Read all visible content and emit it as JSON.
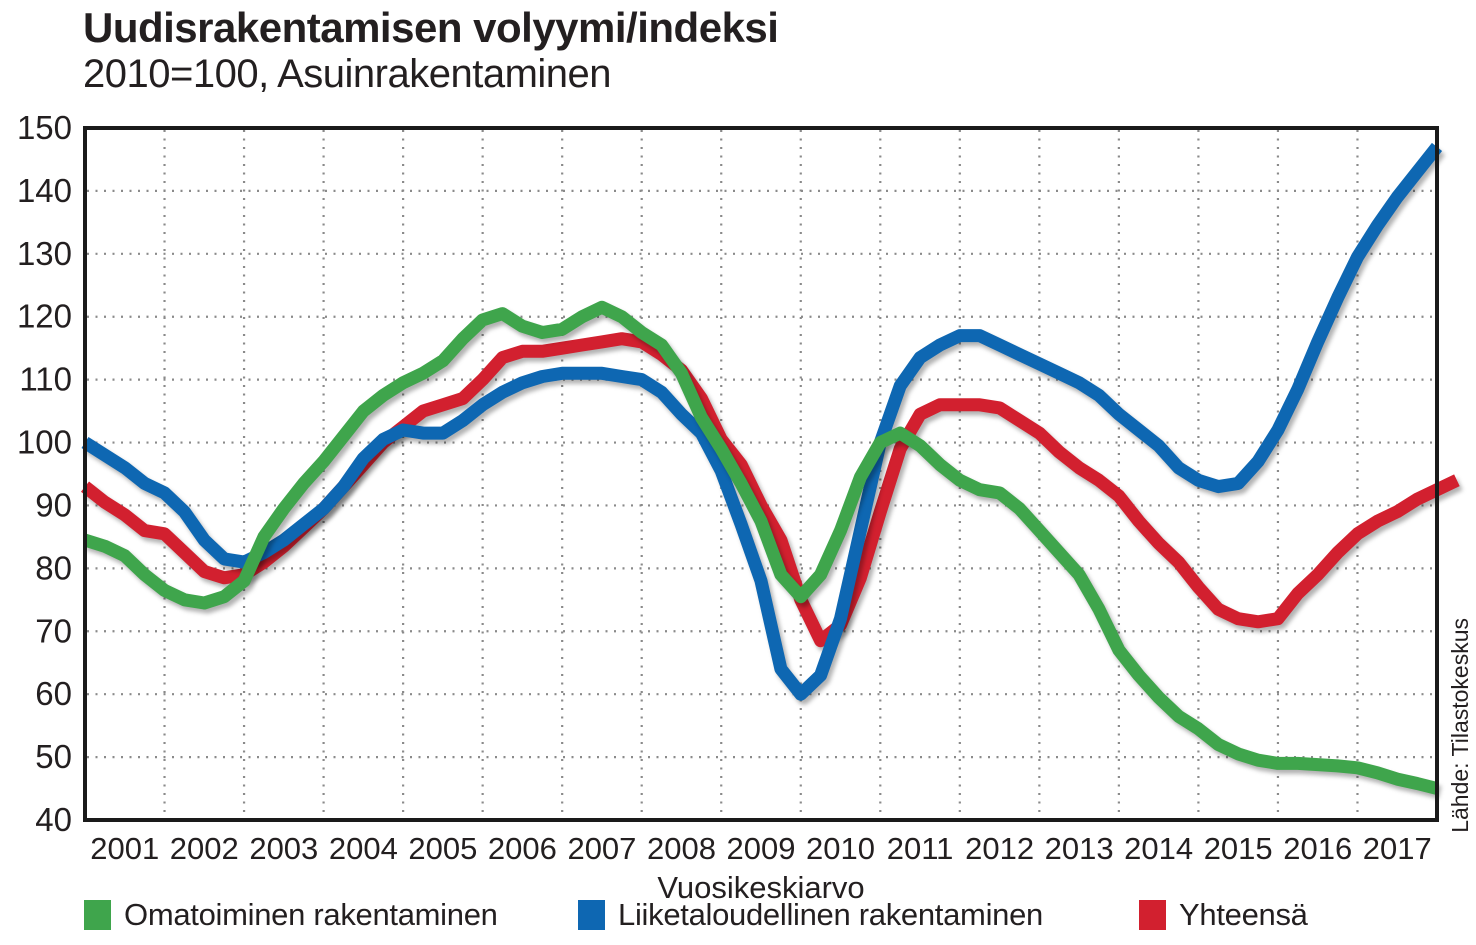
{
  "header": {
    "title": "Uudisrakentamisen volyymi/indeksi",
    "subtitle": "2010=100, Asuinrakentaminen"
  },
  "source": "Lähde: Tilastokeskus",
  "chart_data": {
    "type": "line",
    "title": "Uudisrakentamisen volyymi/indeksi",
    "subtitle": "2010=100, Asuinrakentaminen",
    "xlabel": "Vuosikeskiarvo",
    "ylabel": "",
    "categories": [
      "2001",
      "2002",
      "2003",
      "2004",
      "2005",
      "2006",
      "2007",
      "2008",
      "2009",
      "2010",
      "2011",
      "2012",
      "2013",
      "2014",
      "2015",
      "2016",
      "2017"
    ],
    "yticks": [
      40,
      50,
      60,
      70,
      80,
      90,
      100,
      110,
      120,
      130,
      140,
      150
    ],
    "ylim": [
      40,
      150
    ],
    "xlim": [
      2001.0,
      2018.0
    ],
    "x_start": 2001.0,
    "x_step": 0.25,
    "grid": "dotted",
    "legend_position": "bottom",
    "series": [
      {
        "id": "omatoiminen",
        "name": "Omatoiminen rakentaminen",
        "color": "#3fa54c",
        "values": [
          84.5,
          83.5,
          82,
          79,
          76.5,
          75,
          74.5,
          75.5,
          78,
          85,
          89.5,
          93.5,
          97,
          101,
          105,
          107.5,
          109.5,
          111,
          113,
          116.5,
          119.5,
          120.5,
          118.5,
          117.5,
          118,
          120,
          121.5,
          120,
          117.5,
          115.5,
          111,
          104,
          99,
          93.5,
          87.5,
          79,
          75.5,
          79,
          86,
          94.5,
          100,
          101.5,
          99.5,
          96.5,
          94,
          92.5,
          92,
          89.5,
          86,
          82.5,
          79,
          73.5,
          67,
          63,
          59.5,
          56.5,
          54.5,
          52,
          50.5,
          49.5,
          49,
          49,
          48.8,
          48.6,
          48.3,
          47.5,
          46.5,
          45.8,
          45
        ]
      },
      {
        "id": "liiketaloudellinen",
        "name": "Liiketaloudellinen rakentaminen",
        "color": "#0e67b2",
        "values": [
          100,
          98,
          96,
          93.5,
          92,
          89,
          84.5,
          81.5,
          81,
          82.5,
          84.5,
          87,
          89.5,
          93,
          97.5,
          100.5,
          102,
          101.5,
          101.5,
          103.5,
          106,
          108,
          109.5,
          110.5,
          111,
          111,
          111,
          110.5,
          110,
          108,
          104.5,
          101.5,
          95.5,
          87,
          78,
          64,
          60,
          63,
          72,
          86,
          100,
          109,
          113.5,
          115.5,
          117,
          117,
          115.5,
          114,
          112.5,
          111,
          109.5,
          107.5,
          104.5,
          102,
          99.5,
          96,
          94,
          93,
          93.5,
          97,
          102,
          108.5,
          116,
          123,
          129.5,
          134.5,
          139,
          143,
          147
        ]
      },
      {
        "id": "yhteensa",
        "name": "Yhteensä",
        "color": "#d2202f",
        "values": [
          93,
          90.5,
          88.5,
          86,
          85.5,
          82.5,
          79.5,
          78.5,
          79,
          81,
          83.5,
          86.5,
          89.5,
          93,
          96.5,
          100,
          102.5,
          105,
          106,
          107,
          110,
          113.5,
          114.5,
          114.5,
          115,
          115.5,
          116,
          116.5,
          116,
          114,
          111.5,
          107,
          100.5,
          96.5,
          90,
          84.5,
          75,
          68.5,
          71,
          78.5,
          89,
          99,
          104.5,
          106,
          106,
          106,
          105.5,
          103.5,
          101.5,
          98.5,
          96,
          94,
          91.5,
          87.5,
          84,
          81,
          77,
          73.5,
          72,
          71.5,
          72,
          76,
          79,
          82.5,
          85.5,
          87.5,
          89,
          91,
          92.5,
          94
        ]
      }
    ],
    "draw_order": [
      2,
      1,
      0
    ],
    "colors": {
      "frame": "#1a1a1a",
      "grid_dots": "#8a8a8a",
      "text": "#231f20"
    }
  }
}
